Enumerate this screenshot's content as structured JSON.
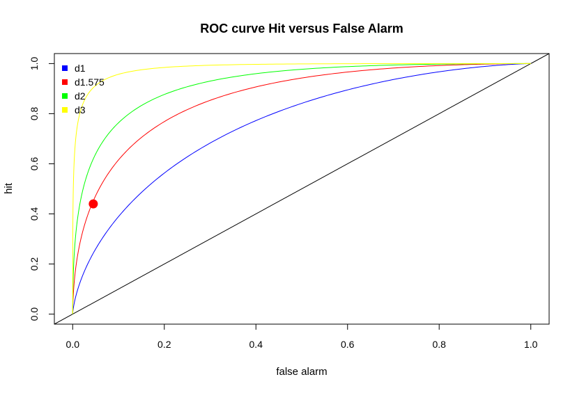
{
  "chart_data": {
    "type": "line",
    "title": "ROC curve Hit versus False Alarm",
    "xlabel": "false alarm",
    "ylabel": "hit",
    "xlim": [
      -0.04,
      1.04
    ],
    "ylim": [
      -0.04,
      1.04
    ],
    "xticks": [
      "0.0",
      "0.2",
      "0.4",
      "0.6",
      "0.8",
      "1.0"
    ],
    "yticks": [
      "0.0",
      "0.2",
      "0.4",
      "0.6",
      "0.8",
      "1.0"
    ],
    "grid": false,
    "legend_position": "top-left",
    "series": [
      {
        "name": "d1",
        "dprime": 1.0,
        "color": "#0000ff"
      },
      {
        "name": "d1.575",
        "dprime": 1.575,
        "color": "#ff0000"
      },
      {
        "name": "d2",
        "dprime": 2.0,
        "color": "#00ff00"
      },
      {
        "name": "d3",
        "dprime": 3.0,
        "color": "#ffff00"
      }
    ],
    "diagonal": {
      "x": [
        -0.04,
        1.04
      ],
      "y": [
        -0.04,
        1.04
      ],
      "color": "#000000"
    },
    "highlight_point": {
      "x": 0.045,
      "y": 0.44,
      "color": "#ff0000"
    }
  }
}
